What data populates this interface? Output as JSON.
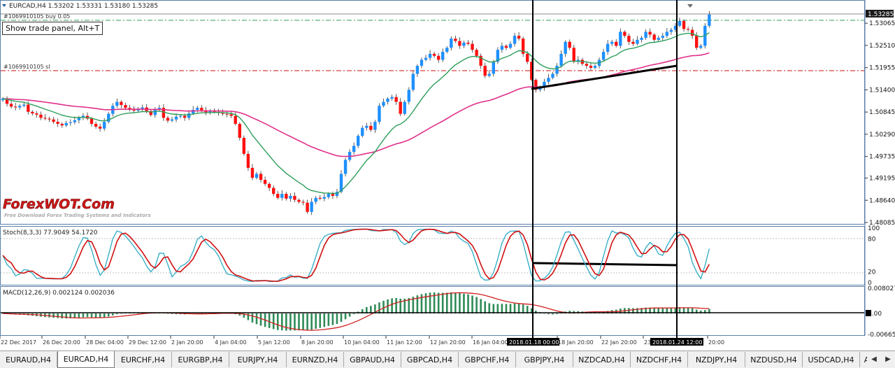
{
  "main": {
    "header": "EURCAD,H4  1.53202 1.53331 1.53180 1.53285",
    "buy_label": "#1069910105 buy 0.05",
    "sl_label": "#1069910105 sl",
    "tooltip": "Show trade panel, Alt+T",
    "watermark": "ForexWOT.Com",
    "watermark_sub": "Free Download Forex Trading Systems and Indicators",
    "price_badge": "1.53285",
    "y_ticks": [
      "1.53065",
      "1.52510",
      "1.51955",
      "1.51400",
      "1.50845",
      "1.50290",
      "1.49735",
      "1.49195",
      "1.48640",
      "1.48085"
    ]
  },
  "stoch": {
    "header": "Stoch(8,3,3) 77.9049 54.1720",
    "y_ticks": [
      "100",
      "80",
      "20",
      "0"
    ]
  },
  "macd": {
    "header": "MACD(12,26,9) 0.002124 0.002036",
    "y_ticks": [
      "0.008027",
      "0.00",
      "-0.006657"
    ]
  },
  "x_axis": {
    "labels": [
      "22 Dec 2017",
      "26 Dec 20:00",
      "28 Dec 04:00",
      "29 Dec 12:00",
      "2 Jan 20:00",
      "4 Jan 04:00",
      "5 Jan 12:00",
      "8 Jan 20:00",
      "10 Jan 04:00",
      "11 Jan 12:00",
      "12 Jan 20:00",
      "16 Jan 04:00",
      "18 Jan 20:00",
      "22 Jan 20:00",
      "23",
      "20:00"
    ],
    "marker1": "2018.01.18 00:00",
    "marker2": "2018.01.24 12:00"
  },
  "tabs": [
    {
      "label": "EURAUD,H4"
    },
    {
      "label": "EURCAD,H4",
      "active": true
    },
    {
      "label": "EURCHF,H4"
    },
    {
      "label": "EURGBP,H4"
    },
    {
      "label": "EURJPY,H4"
    },
    {
      "label": "EURNZD,H4"
    },
    {
      "label": "GBPAUD,H4"
    },
    {
      "label": "GBPCAD,H4"
    },
    {
      "label": "GBPCHF,H4"
    },
    {
      "label": "GBPJPY,H4"
    },
    {
      "label": "NZDCAD,H4"
    },
    {
      "label": "NZDCHF,H4"
    },
    {
      "label": "NZDJPY,H4"
    },
    {
      "label": "NZDUSD,H4"
    },
    {
      "label": "USDCAD,H4"
    },
    {
      "label": "A"
    }
  ],
  "colors": {
    "bull": "#1e90ff",
    "bear": "#ff1010",
    "ma_fast": "#2e9e5b",
    "ma_slow": "#e0308a",
    "stoch_main": "#3ab0c8",
    "stoch_signal": "#d01010",
    "macd_hist": "#2e8b57",
    "macd_signal": "#d02020"
  },
  "chart_data": {
    "type": "candlestick",
    "symbol": "EURCAD",
    "timeframe": "H4",
    "ohlc_last": {
      "open": 1.53202,
      "high": 1.53331,
      "low": 1.5318,
      "close": 1.53285
    },
    "price_range": [
      1.48085,
      1.534
    ],
    "trade_levels": {
      "buy": 1.5312,
      "sl": 1.5188
    },
    "closes": [
      1.5118,
      1.5105,
      1.5098,
      1.5096,
      1.51,
      1.5103,
      1.5085,
      1.5081,
      1.5078,
      1.507,
      1.5068,
      1.5066,
      1.506,
      1.5055,
      1.5051,
      1.5057,
      1.5059,
      1.5064,
      1.507,
      1.5075,
      1.5068,
      1.5055,
      1.5048,
      1.5043,
      1.506,
      1.508,
      1.51,
      1.511,
      1.5102,
      1.5095,
      1.509,
      1.5088,
      1.5092,
      1.5096,
      1.5087,
      1.5077,
      1.5091,
      1.5095,
      1.507,
      1.5063,
      1.5066,
      1.5073,
      1.5075,
      1.507,
      1.5081,
      1.509,
      1.5095,
      1.5089,
      1.5084,
      1.5088,
      1.5085,
      1.5082,
      1.508,
      1.5079,
      1.5075,
      1.5055,
      1.502,
      1.498,
      1.4945,
      1.492,
      1.493,
      1.4915,
      1.4905,
      1.4895,
      1.488,
      1.487,
      1.488,
      1.4868,
      1.4875,
      1.4865,
      1.486,
      1.4858,
      1.4835,
      1.486,
      1.487,
      1.4868,
      1.4872,
      1.488,
      1.4875,
      1.4885,
      1.493,
      1.4965,
      1.4985,
      1.5,
      1.5025,
      1.5045,
      1.505,
      1.504,
      1.506,
      1.51,
      1.511,
      1.5118,
      1.5122,
      1.511,
      1.508,
      1.511,
      1.514,
      1.518,
      1.52,
      1.5215,
      1.522,
      1.523,
      1.5225,
      1.5215,
      1.5235,
      1.5245,
      1.5268,
      1.5262,
      1.525,
      1.5258,
      1.5255,
      1.524,
      1.5225,
      1.52,
      1.5175,
      1.518,
      1.521,
      1.524,
      1.525,
      1.5245,
      1.5255,
      1.5275,
      1.5268,
      1.523,
      1.521,
      1.5165,
      1.514,
      1.5145,
      1.516,
      1.517,
      1.518,
      1.52,
      1.523,
      1.526,
      1.5245,
      1.521,
      1.5215,
      1.5205,
      1.52,
      1.5195,
      1.52,
      1.5215,
      1.5235,
      1.5255,
      1.526,
      1.525,
      1.5285,
      1.5275,
      1.526,
      1.5255,
      1.5265,
      1.527,
      1.5285,
      1.5278,
      1.5265,
      1.527,
      1.5275,
      1.5285,
      1.529,
      1.53,
      1.5312,
      1.5292,
      1.529,
      1.5275,
      1.5245,
      1.525,
      1.53,
      1.5328
    ]
  }
}
